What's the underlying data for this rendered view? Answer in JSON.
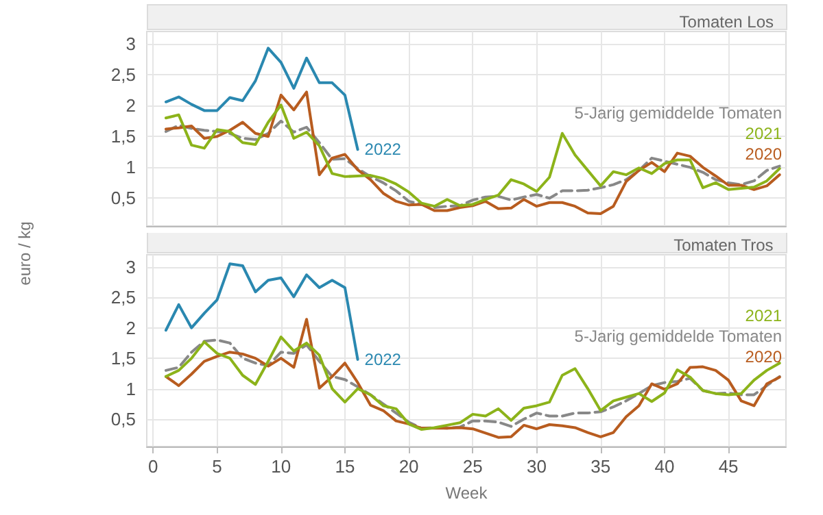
{
  "chart_data": [
    {
      "type": "line",
      "title": "Tomaten Los",
      "ylabel": "euro / kg",
      "tick_labels": "y",
      "grid": true,
      "legend": false,
      "marker": "none",
      "xlim": [
        -0.5,
        49.5
      ],
      "xticks": [
        0,
        5,
        10,
        15,
        20,
        25,
        30,
        35,
        40,
        45
      ],
      "ylim": [
        0.05,
        3.2
      ],
      "yticks": [
        {
          "value": 0.5,
          "label": "0,5"
        },
        1,
        {
          "value": 1.5,
          "label": "1,5"
        },
        2,
        {
          "value": 2.5,
          "label": "2,5"
        },
        3
      ],
      "x": [
        1,
        2,
        3,
        4,
        5,
        6,
        7,
        8,
        9,
        10,
        11,
        12,
        13,
        14,
        15,
        16,
        17,
        18,
        19,
        20,
        21,
        22,
        23,
        24,
        25,
        26,
        27,
        28,
        29,
        30,
        31,
        32,
        33,
        34,
        35,
        36,
        37,
        38,
        39,
        40,
        41,
        42,
        43,
        44,
        45,
        46,
        47,
        48,
        49
      ],
      "series": [
        {
          "name": "2022",
          "color": "#2a88b0",
          "line_style": "solid",
          "values": [
            2.06,
            2.14,
            2.02,
            1.92,
            1.92,
            2.13,
            2.08,
            2.4,
            2.93,
            2.7,
            2.28,
            2.77,
            2.37,
            2.37,
            2.17,
            1.29,
            null,
            null,
            null,
            null,
            null,
            null,
            null,
            null,
            null,
            null,
            null,
            null,
            null,
            null,
            null,
            null,
            null,
            null,
            null,
            null,
            null,
            null,
            null,
            null,
            null,
            null,
            null,
            null,
            null,
            null,
            null,
            null,
            null
          ]
        },
        {
          "name": "2021",
          "color": "#8cb31a",
          "line_style": "solid",
          "values": [
            1.8,
            1.85,
            1.36,
            1.31,
            1.61,
            1.58,
            1.4,
            1.37,
            1.73,
            2.01,
            1.47,
            1.57,
            1.35,
            0.9,
            0.85,
            0.86,
            0.87,
            0.82,
            0.73,
            0.6,
            0.42,
            0.37,
            0.48,
            0.38,
            0.4,
            0.48,
            0.55,
            0.8,
            0.73,
            0.61,
            0.84,
            1.55,
            1.2,
            0.95,
            0.7,
            0.93,
            0.88,
            0.99,
            0.9,
            1.06,
            1.12,
            1.12,
            0.67,
            0.75,
            0.64,
            0.66,
            0.68,
            0.78,
            0.98
          ]
        },
        {
          "name": "2020",
          "color": "#b85c1f",
          "line_style": "solid",
          "values": [
            1.62,
            1.64,
            1.67,
            1.47,
            1.5,
            1.6,
            1.73,
            1.55,
            1.5,
            2.17,
            1.93,
            2.22,
            0.88,
            1.15,
            1.21,
            0.96,
            0.8,
            0.58,
            0.45,
            0.39,
            0.4,
            0.3,
            0.3,
            0.35,
            0.38,
            0.45,
            0.33,
            0.34,
            0.48,
            0.37,
            0.43,
            0.43,
            0.37,
            0.26,
            0.25,
            0.37,
            0.77,
            0.95,
            1.08,
            0.93,
            1.23,
            1.18,
            1.0,
            0.86,
            0.71,
            0.71,
            0.64,
            0.7,
            0.88
          ]
        },
        {
          "name": "5-Jarig gemiddelde Tomaten",
          "color": "#888888",
          "line_style": "dashed",
          "values": [
            1.58,
            1.68,
            1.63,
            1.6,
            1.58,
            1.55,
            1.47,
            1.45,
            1.55,
            1.75,
            1.57,
            1.65,
            1.4,
            1.13,
            1.14,
            0.98,
            0.85,
            0.75,
            0.62,
            0.45,
            0.4,
            0.35,
            0.37,
            0.38,
            0.47,
            0.52,
            0.53,
            0.47,
            0.52,
            0.56,
            0.5,
            0.62,
            0.62,
            0.63,
            0.67,
            0.72,
            0.8,
            0.95,
            1.15,
            1.1,
            1.05,
            1.0,
            0.92,
            0.8,
            0.75,
            0.72,
            0.78,
            0.95,
            1.02
          ]
        }
      ]
    },
    {
      "type": "line",
      "title": "Tomaten Tros",
      "xlabel": "Week",
      "grid": true,
      "legend": false,
      "marker": "none",
      "xlim": [
        -0.5,
        49.5
      ],
      "xticks": [
        0,
        5,
        10,
        15,
        20,
        25,
        30,
        35,
        40,
        45
      ],
      "ylim": [
        0.05,
        3.2
      ],
      "yticks": [
        {
          "value": 0.5,
          "label": "0,5"
        },
        1,
        {
          "value": 1.5,
          "label": "1,5"
        },
        2,
        {
          "value": 2.5,
          "label": "2,5"
        },
        3
      ],
      "x": [
        1,
        2,
        3,
        4,
        5,
        6,
        7,
        8,
        9,
        10,
        11,
        12,
        13,
        14,
        15,
        16,
        17,
        18,
        19,
        20,
        21,
        22,
        23,
        24,
        25,
        26,
        27,
        28,
        29,
        30,
        31,
        32,
        33,
        34,
        35,
        36,
        37,
        38,
        39,
        40,
        41,
        42,
        43,
        44,
        45,
        46,
        47,
        48,
        49
      ],
      "series": [
        {
          "name": "2022",
          "color": "#2a88b0",
          "line_style": "solid",
          "values": [
            1.96,
            2.38,
            2.0,
            2.24,
            2.46,
            3.05,
            3.02,
            2.59,
            2.78,
            2.82,
            2.51,
            2.87,
            2.66,
            2.78,
            2.66,
            1.48,
            null,
            null,
            null,
            null,
            null,
            null,
            null,
            null,
            null,
            null,
            null,
            null,
            null,
            null,
            null,
            null,
            null,
            null,
            null,
            null,
            null,
            null,
            null,
            null,
            null,
            null,
            null,
            null,
            null,
            null,
            null,
            null,
            null
          ]
        },
        {
          "name": "2021",
          "color": "#8cb31a",
          "line_style": "solid",
          "values": [
            1.2,
            1.3,
            1.5,
            1.77,
            1.58,
            1.5,
            1.22,
            1.07,
            1.45,
            1.85,
            1.62,
            1.75,
            1.55,
            1.0,
            0.78,
            1.0,
            0.9,
            0.72,
            0.67,
            0.42,
            0.33,
            0.36,
            0.4,
            0.44,
            0.58,
            0.55,
            0.67,
            0.48,
            0.68,
            0.72,
            0.78,
            1.22,
            1.33,
            1.0,
            0.64,
            0.8,
            0.86,
            0.92,
            0.79,
            0.93,
            1.31,
            1.19,
            0.97,
            0.92,
            0.9,
            0.92,
            1.14,
            1.3,
            1.42
          ]
        },
        {
          "name": "2020",
          "color": "#b85c1f",
          "line_style": "solid",
          "values": [
            1.2,
            1.05,
            1.24,
            1.45,
            1.53,
            1.6,
            1.57,
            1.5,
            1.37,
            1.5,
            1.35,
            2.14,
            1.01,
            1.2,
            1.42,
            1.1,
            0.73,
            0.64,
            0.47,
            0.42,
            0.35,
            0.35,
            0.35,
            0.36,
            0.34,
            0.27,
            0.2,
            0.21,
            0.4,
            0.34,
            0.41,
            0.39,
            0.36,
            0.28,
            0.21,
            0.28,
            0.54,
            0.72,
            1.08,
            0.99,
            1.08,
            1.35,
            1.36,
            1.3,
            1.14,
            0.8,
            0.72,
            1.08,
            1.19
          ]
        },
        {
          "name": "5-Jarig gemiddelde Tomaten",
          "color": "#888888",
          "line_style": "dashed",
          "values": [
            1.3,
            1.35,
            1.6,
            1.78,
            1.8,
            1.75,
            1.5,
            1.42,
            1.38,
            1.6,
            1.58,
            1.72,
            1.45,
            1.2,
            1.15,
            1.03,
            0.9,
            0.75,
            0.6,
            0.45,
            0.35,
            0.36,
            0.35,
            0.37,
            0.47,
            0.47,
            0.45,
            0.38,
            0.5,
            0.6,
            0.55,
            0.55,
            0.6,
            0.6,
            0.62,
            0.7,
            0.8,
            0.92,
            1.05,
            1.1,
            1.12,
            1.17,
            0.97,
            0.92,
            0.93,
            0.9,
            0.9,
            1.05,
            1.2
          ]
        }
      ]
    }
  ]
}
